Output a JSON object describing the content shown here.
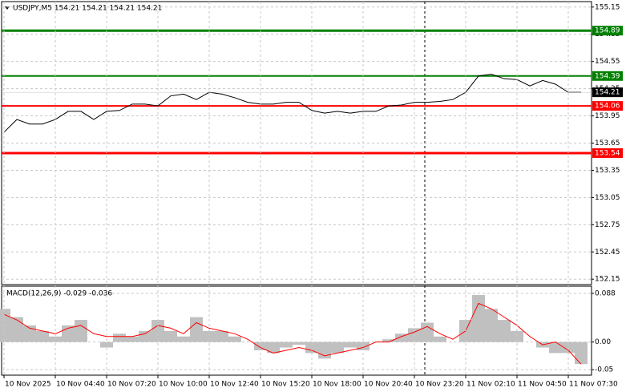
{
  "chart_data": [
    {
      "type": "line",
      "title": "USDJPY,M5  154.21 154.21 154.21 154.21",
      "color": "#000000",
      "grid": true,
      "categories": [
        "10 Nov 2025",
        null,
        null,
        null,
        "10 Nov 04:40",
        null,
        null,
        null,
        "10 Nov 07:20",
        null,
        null,
        null,
        "10 Nov 10:00",
        null,
        null,
        null,
        "10 Nov 12:40",
        null,
        null,
        null,
        "10 Nov 15:20",
        null,
        null,
        null,
        "10 Nov 18:00",
        null,
        null,
        null,
        "10 Nov 20:40",
        null,
        null,
        null,
        "10 Nov 23:20",
        null,
        null,
        null,
        "11 Nov 02:10",
        null,
        null,
        null,
        "11 Nov 04:50",
        null,
        null,
        null,
        "11 Nov 07:30",
        null
      ],
      "values": [
        153.77,
        153.91,
        153.86,
        153.86,
        153.91,
        154.0,
        154.0,
        153.91,
        154.0,
        154.01,
        154.08,
        154.08,
        154.06,
        154.17,
        154.19,
        154.13,
        154.21,
        154.19,
        154.15,
        154.1,
        154.08,
        154.08,
        154.1,
        154.1,
        154.01,
        153.98,
        154.0,
        153.98,
        154.0,
        154.0,
        154.06,
        154.07,
        154.1,
        154.1,
        154.11,
        154.13,
        154.21,
        154.39,
        154.41,
        154.36,
        154.35,
        154.28,
        154.34,
        154.3,
        154.21,
        154.21
      ],
      "ylim": [
        152.09,
        155.21
      ],
      "yticks": [
        152.15,
        152.45,
        152.75,
        153.05,
        153.35,
        153.65,
        153.95,
        154.25,
        154.55,
        154.85,
        155.15
      ],
      "levels": [
        {
          "value": 154.89,
          "color": "#008000"
        },
        {
          "value": 154.39,
          "color": "#008000"
        },
        {
          "value": 154.06,
          "color": "#ff0000"
        },
        {
          "value": 153.54,
          "color": "#ff0000"
        }
      ],
      "last": 154.21
    },
    {
      "type": "macd",
      "title": "MACD(12,26,9) -0.029 -0.036",
      "histogram": {
        "color": "#c0c0c0",
        "values": [
          0.06,
          0.045,
          0.03,
          0.02,
          0.01,
          0.03,
          0.04,
          0.0,
          -0.01,
          0.015,
          0.01,
          0.02,
          0.04,
          0.02,
          0.01,
          0.045,
          0.02,
          0.02,
          0.01,
          0.0,
          -0.015,
          -0.02,
          -0.01,
          -0.005,
          -0.02,
          -0.03,
          -0.02,
          -0.01,
          -0.015,
          0.0,
          0.005,
          0.015,
          0.025,
          0.035,
          0.01,
          0.0,
          0.04,
          0.085,
          0.06,
          0.04,
          0.02,
          0.0,
          -0.01,
          -0.02,
          -0.02,
          -0.04
        ]
      },
      "signal": {
        "color": "#ff0000",
        "values": [
          0.05,
          0.04,
          0.025,
          0.02,
          0.015,
          0.025,
          0.03,
          0.015,
          0.01,
          0.01,
          0.01,
          0.015,
          0.03,
          0.025,
          0.015,
          0.035,
          0.025,
          0.02,
          0.015,
          0.005,
          -0.01,
          -0.02,
          -0.015,
          -0.01,
          -0.015,
          -0.025,
          -0.02,
          -0.015,
          -0.01,
          0.0,
          0.0,
          0.01,
          0.018,
          0.028,
          0.015,
          0.005,
          0.02,
          0.07,
          0.06,
          0.045,
          0.03,
          0.01,
          -0.005,
          0.0,
          -0.015,
          -0.04
        ]
      },
      "ylim": [
        -0.06,
        0.101
      ],
      "yticks": [
        -0.05,
        {
          "value": 0,
          "label": "0.00"
        },
        0.088
      ]
    }
  ]
}
